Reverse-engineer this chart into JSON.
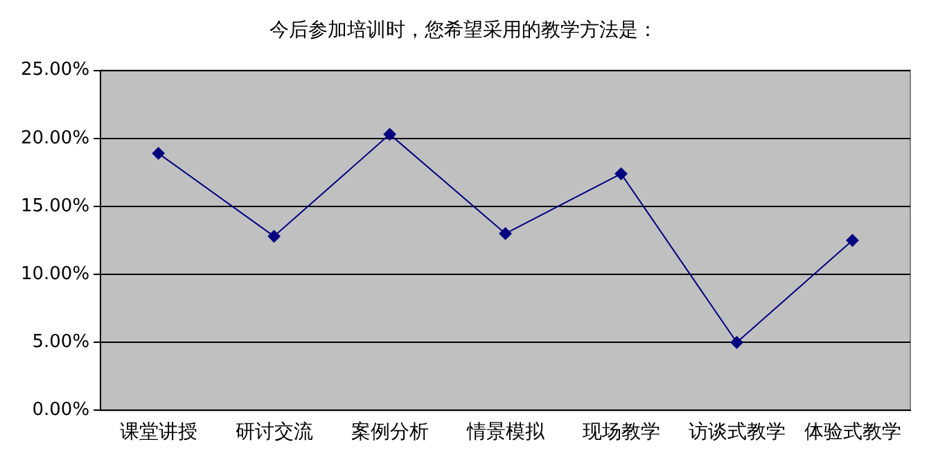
{
  "chart_data": {
    "type": "line",
    "title": "今后参加培训时，您希望采用的教学方法是：",
    "categories": [
      "课堂讲授",
      "研讨交流",
      "案例分析",
      "情景模拟",
      "现场教学",
      "访谈式教学",
      "体验式教学"
    ],
    "series": [
      {
        "color": "#000080",
        "values": [
          18.9,
          12.8,
          20.3,
          13.0,
          17.4,
          5.0,
          12.5
        ]
      }
    ],
    "ylim": [
      0,
      25
    ],
    "yticks": [
      {
        "value": 0,
        "label": "0.00%"
      },
      {
        "value": 5,
        "label": "5.00%"
      },
      {
        "value": 10,
        "label": "10.00%"
      },
      {
        "value": 15,
        "label": "15.00%"
      },
      {
        "value": 20,
        "label": "20.00%"
      },
      {
        "value": 25,
        "label": "25.00%"
      }
    ],
    "grid": "y",
    "legend": false,
    "marker": "diamond",
    "line_style": "solid"
  }
}
